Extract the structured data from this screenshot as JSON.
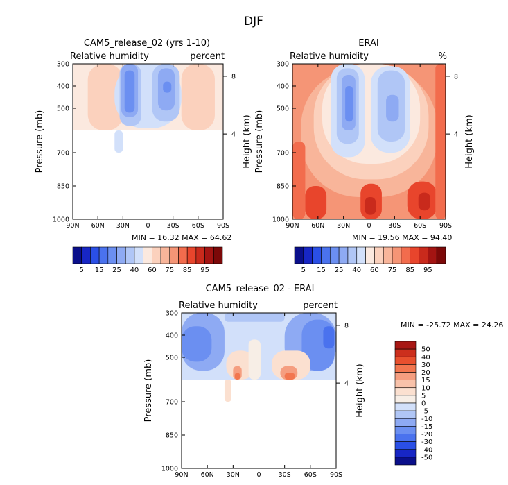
{
  "figure_title": "DJF",
  "colormaps": {
    "rh": [
      "#0a0f8a",
      "#1726c5",
      "#2a4fe6",
      "#4a72ee",
      "#6b8ff1",
      "#8eaaf3",
      "#b0c6f6",
      "#d2e0fa",
      "#fbe9df",
      "#fbd1bd",
      "#f8b59a",
      "#f59576",
      "#f26c4d",
      "#e8452c",
      "#c92a1c",
      "#a41412",
      "#7c0808"
    ],
    "diff": [
      "#0a0f8a",
      "#1726c5",
      "#2a4fe6",
      "#4a72ee",
      "#6b8ff1",
      "#8eaaf3",
      "#b0c6f6",
      "#d2e0fa",
      "#f7eee6",
      "#fbe0d0",
      "#f8c2aa",
      "#f59e80",
      "#f2764f",
      "#e8502e",
      "#cc2f1d",
      "#a81714",
      "#7d0707"
    ]
  },
  "chart_data": [
    {
      "id": "cam5",
      "type": "heatmap",
      "title": "CAM5_release_02 (yrs 1-10)",
      "left_label": "Relative humidity",
      "right_label": "percent",
      "xlabel": "",
      "ylabel": "Pressure (mb)",
      "ylabel_right": "Height (km)",
      "x_ticks": [
        "90N",
        "60N",
        "30N",
        "0",
        "30S",
        "60S",
        "90S"
      ],
      "x_range": [
        90,
        -90
      ],
      "y_ticks": [
        "300",
        "400",
        "500",
        "700",
        "850",
        "1000"
      ],
      "y_tick_values": [
        300,
        400,
        500,
        700,
        850,
        1000
      ],
      "y_range": [
        300,
        1000
      ],
      "height_ticks": [
        "8",
        "4"
      ],
      "height_tick_pressure": [
        356,
        616
      ],
      "stats": {
        "min_label": "MIN =",
        "min": "16.32",
        "max_label": "MAX =",
        "max": "64.62"
      },
      "colorbar_labels": [
        "5",
        "15",
        "25",
        "40",
        "60",
        "75",
        "85",
        "95"
      ],
      "colorbar_levels": 17,
      "data_bottom_pressure": 600,
      "background_level": 8,
      "regions": [
        {
          "lat": [
            72,
            30
          ],
          "p": [
            300,
            600
          ],
          "level": 9
        },
        {
          "lat": [
            -40,
            -80
          ],
          "p": [
            300,
            600
          ],
          "level": 9
        },
        {
          "lat": [
            40,
            -40
          ],
          "p": [
            300,
            590
          ],
          "level": 7
        },
        {
          "lat": [
            34,
            8
          ],
          "p": [
            300,
            580
          ],
          "level": 6
        },
        {
          "lat": [
            -5,
            -38
          ],
          "p": [
            300,
            560
          ],
          "level": 6
        },
        {
          "lat": [
            32,
            12
          ],
          "p": [
            300,
            540
          ],
          "level": 5
        },
        {
          "lat": [
            -12,
            -32
          ],
          "p": [
            320,
            510
          ],
          "level": 5
        },
        {
          "lat": [
            28,
            16
          ],
          "p": [
            330,
            520
          ],
          "level": 4
        },
        {
          "lat": [
            -18,
            -28
          ],
          "p": [
            380,
            430
          ],
          "level": 4
        },
        {
          "lat": [
            40,
            30
          ],
          "p": [
            600,
            700
          ],
          "level": 7
        }
      ]
    },
    {
      "id": "erai",
      "type": "heatmap",
      "title": "ERAI",
      "left_label": "Relative humidity",
      "right_label": "%",
      "xlabel": "",
      "ylabel": "Pressure (mb)",
      "ylabel_right": "Height (km)",
      "x_ticks": [
        "90N",
        "60N",
        "30N",
        "0",
        "30S",
        "60S",
        "90S"
      ],
      "x_range": [
        90,
        -90
      ],
      "y_ticks": [
        "300",
        "400",
        "500",
        "700",
        "850",
        "1000"
      ],
      "y_tick_values": [
        300,
        400,
        500,
        700,
        850,
        1000
      ],
      "y_range": [
        300,
        1000
      ],
      "height_ticks": [
        "8",
        "4"
      ],
      "height_tick_pressure": [
        356,
        616
      ],
      "stats": {
        "min_label": "MIN =",
        "min": "19.56",
        "max_label": "MAX =",
        "max": "94.40"
      },
      "colorbar_labels": [
        "5",
        "15",
        "25",
        "40",
        "60",
        "75",
        "85",
        "95"
      ],
      "colorbar_levels": 17,
      "data_bottom_pressure": 1000,
      "background_level": 11,
      "regions": [
        {
          "lat": [
            90,
            -90
          ],
          "p": [
            300,
            1000
          ],
          "level": 11
        },
        {
          "lat": [
            80,
            -80
          ],
          "p": [
            320,
            900
          ],
          "level": 10
        },
        {
          "lat": [
            65,
            -70
          ],
          "p": [
            300,
            820
          ],
          "level": 9
        },
        {
          "lat": [
            55,
            -60
          ],
          "p": [
            300,
            750
          ],
          "level": 8
        },
        {
          "lat": [
            45,
            5
          ],
          "p": [
            300,
            720
          ],
          "level": 7
        },
        {
          "lat": [
            -2,
            -48
          ],
          "p": [
            310,
            700
          ],
          "level": 7
        },
        {
          "lat": [
            38,
            12
          ],
          "p": [
            320,
            660
          ],
          "level": 6
        },
        {
          "lat": [
            -10,
            -42
          ],
          "p": [
            330,
            650
          ],
          "level": 6
        },
        {
          "lat": [
            32,
            16
          ],
          "p": [
            350,
            600
          ],
          "level": 5
        },
        {
          "lat": [
            -20,
            -35
          ],
          "p": [
            440,
            560
          ],
          "level": 5
        },
        {
          "lat": [
            28,
            19
          ],
          "p": [
            400,
            560
          ],
          "level": 4
        },
        {
          "lat": [
            75,
            50
          ],
          "p": [
            850,
            1000
          ],
          "level": 13
        },
        {
          "lat": [
            10,
            -15
          ],
          "p": [
            840,
            1000
          ],
          "level": 13
        },
        {
          "lat": [
            -45,
            -80
          ],
          "p": [
            830,
            1000
          ],
          "level": 13
        },
        {
          "lat": [
            5,
            -8
          ],
          "p": [
            900,
            980
          ],
          "level": 14
        },
        {
          "lat": [
            -58,
            -72
          ],
          "p": [
            880,
            960
          ],
          "level": 14
        },
        {
          "lat": [
            90,
            75
          ],
          "p": [
            650,
            1000
          ],
          "level": 12
        },
        {
          "lat": [
            -78,
            -90
          ],
          "p": [
            300,
            1000
          ],
          "level": 12
        }
      ]
    },
    {
      "id": "diff",
      "type": "heatmap",
      "title": "CAM5_release_02 - ERAI",
      "left_label": "Relative humidity",
      "right_label": "percent",
      "xlabel": "",
      "ylabel": "Pressure (mb)",
      "ylabel_right": "Height (km)",
      "x_ticks": [
        "90N",
        "60N",
        "30N",
        "0",
        "30S",
        "60S",
        "90S"
      ],
      "x_range": [
        90,
        -90
      ],
      "y_ticks": [
        "300",
        "400",
        "500",
        "700",
        "850",
        "1000"
      ],
      "y_tick_values": [
        300,
        400,
        500,
        700,
        850,
        1000
      ],
      "y_range": [
        300,
        1000
      ],
      "height_ticks": [
        "8",
        "4"
      ],
      "height_tick_pressure": [
        356,
        616
      ],
      "stats": {
        "min_label": "MIN =",
        "min": "-25.72",
        "max_label": "MAX =",
        "max": "24.26"
      },
      "colorbar_labels": [
        "50",
        "40",
        "30",
        "20",
        "15",
        "10",
        "5",
        "0",
        "-5",
        "-10",
        "-15",
        "-20",
        "-30",
        "-40",
        "-50"
      ],
      "colorbar_levels": 16,
      "data_bottom_pressure": 600,
      "background_level": 7,
      "regions": [
        {
          "lat": [
            90,
            -90
          ],
          "p": [
            300,
            600
          ],
          "level": 7
        },
        {
          "lat": [
            90,
            40
          ],
          "p": [
            300,
            560
          ],
          "level": 5
        },
        {
          "lat": [
            -30,
            -90
          ],
          "p": [
            300,
            560
          ],
          "level": 5
        },
        {
          "lat": [
            90,
            55
          ],
          "p": [
            360,
            520
          ],
          "level": 4
        },
        {
          "lat": [
            -50,
            -88
          ],
          "p": [
            330,
            560
          ],
          "level": 4
        },
        {
          "lat": [
            -75,
            -88
          ],
          "p": [
            360,
            460
          ],
          "level": 3
        },
        {
          "lat": [
            40,
            -30
          ],
          "p": [
            300,
            340
          ],
          "level": 6
        },
        {
          "lat": [
            38,
            5
          ],
          "p": [
            470,
            600
          ],
          "level": 9
        },
        {
          "lat": [
            -15,
            -60
          ],
          "p": [
            470,
            600
          ],
          "level": 9
        },
        {
          "lat": [
            30,
            20
          ],
          "p": [
            540,
            600
          ],
          "level": 11
        },
        {
          "lat": [
            -25,
            -45
          ],
          "p": [
            540,
            600
          ],
          "level": 11
        },
        {
          "lat": [
            28,
            22
          ],
          "p": [
            570,
            600
          ],
          "level": 12
        },
        {
          "lat": [
            -30,
            -42
          ],
          "p": [
            570,
            600
          ],
          "level": 12
        },
        {
          "lat": [
            12,
            -2
          ],
          "p": [
            420,
            600
          ],
          "level": 8
        },
        {
          "lat": [
            40,
            32
          ],
          "p": [
            600,
            700
          ],
          "level": 9
        }
      ]
    }
  ]
}
